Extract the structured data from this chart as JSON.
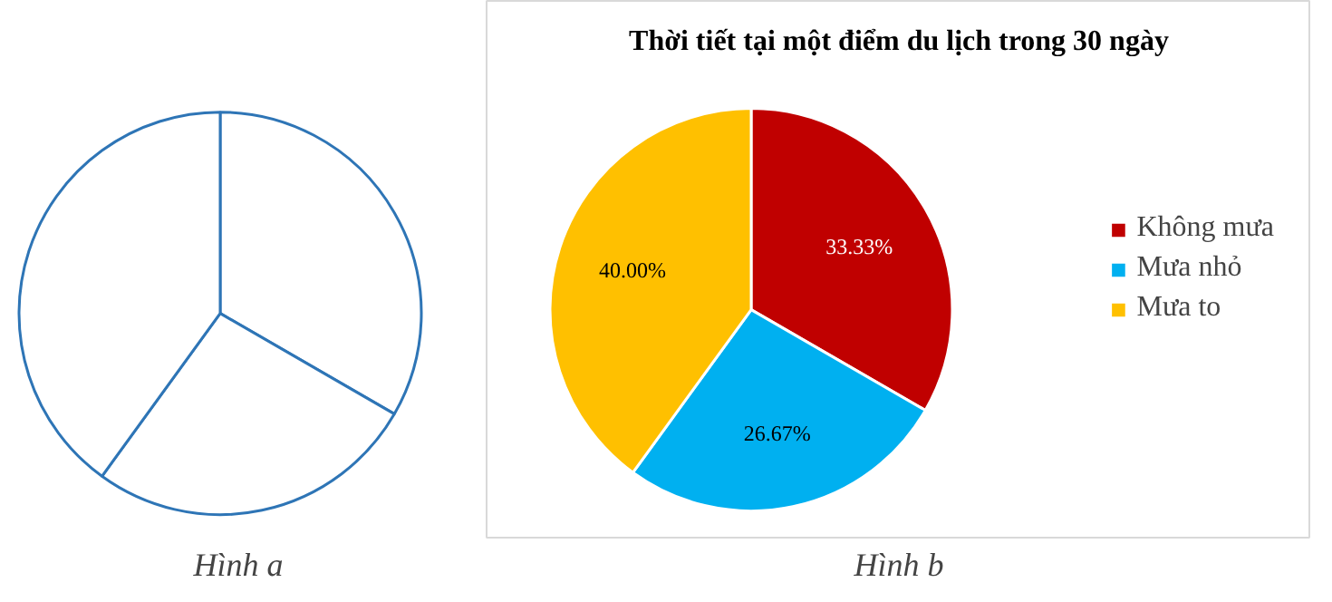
{
  "chart_data": [
    {
      "type": "pie",
      "categories": [
        null,
        null,
        null
      ],
      "values": [
        33.33,
        26.67,
        40
      ],
      "colors": [
        "#ffffff",
        "#ffffff",
        "#ffffff"
      ],
      "legend": false,
      "annotations": [
        "Hình a"
      ]
    },
    {
      "type": "pie",
      "title": "Thời tiết tại một điểm du lịch trong 30 ngày",
      "categories": [
        "Không mưa",
        "Mưa nhỏ",
        "Mưa to"
      ],
      "values": [
        33.33,
        26.67,
        40
      ],
      "colors": [
        "#c00000",
        "#00b0f0",
        "#ffc000"
      ],
      "value_labels": [
        "33.33%",
        "26.67%",
        "40.00%"
      ],
      "legend": "right",
      "annotations": [
        "Hình b"
      ]
    }
  ]
}
